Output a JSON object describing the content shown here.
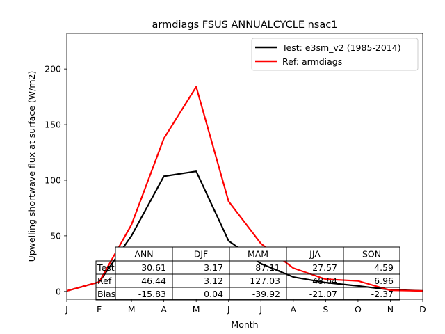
{
  "chart_data": {
    "type": "line",
    "title": "armdiags FSUS ANNUALCYCLE nsac1",
    "xlabel": "Month",
    "ylabel": "Upwelling shortwave flux at surface (W/m2)",
    "x": [
      1,
      2,
      3,
      4,
      5,
      6,
      7,
      8,
      9,
      10,
      11,
      12
    ],
    "x_tick_labels": [
      "J",
      "F",
      "M",
      "A",
      "M",
      "J",
      "J",
      "A",
      "S",
      "O",
      "N",
      "D"
    ],
    "xlim": [
      1,
      12
    ],
    "ylim": [
      -7,
      232
    ],
    "y_ticks": [
      0,
      50,
      100,
      150,
      200
    ],
    "series": [
      {
        "name": "Test: e3sm_v2 (1985-2014)",
        "color": "#000000",
        "values": [
          0.5,
          8.5,
          50.0,
          103.5,
          108.0,
          45.5,
          25.0,
          13.0,
          8.0,
          5.0,
          1.5,
          0.5
        ]
      },
      {
        "name": "Ref: armdiags",
        "color": "#ff0000",
        "values": [
          0.5,
          8.5,
          60.0,
          137.5,
          184.0,
          81.0,
          43.0,
          21.0,
          11.0,
          9.5,
          1.0,
          0.5
        ]
      }
    ],
    "legend_position": "upper right",
    "table": {
      "col_labels": [
        "ANN",
        "DJF",
        "MAM",
        "JJA",
        "SON"
      ],
      "row_labels": [
        "Test",
        "Ref",
        "Bias"
      ],
      "cells": [
        [
          "30.61",
          "3.17",
          "87.11",
          "27.57",
          "4.59"
        ],
        [
          "46.44",
          "3.12",
          "127.03",
          "48.64",
          "6.96"
        ],
        [
          "-15.83",
          "0.04",
          "-39.92",
          "-21.07",
          "-2.37"
        ]
      ]
    }
  }
}
